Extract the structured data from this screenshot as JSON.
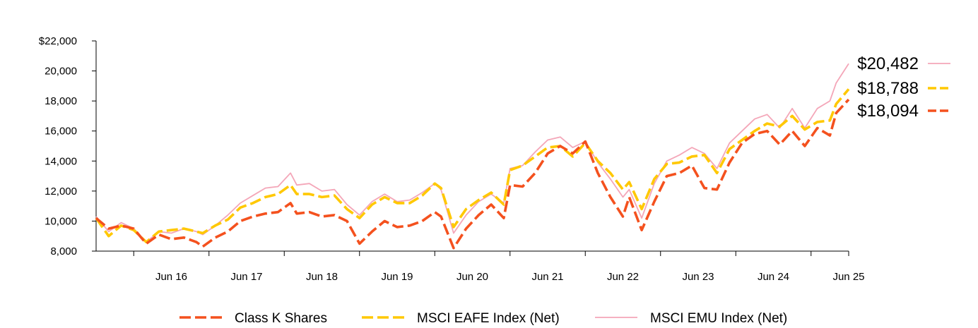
{
  "chart_data": {
    "type": "line",
    "x_start": "2015-06",
    "x_end": "2025-06",
    "ylim": [
      8000,
      22000
    ],
    "y_ticks": [
      {
        "value": 8000,
        "label": "8,000"
      },
      {
        "value": 10000,
        "label": "10,000"
      },
      {
        "value": 12000,
        "label": "12,000"
      },
      {
        "value": 14000,
        "label": "14,000"
      },
      {
        "value": 16000,
        "label": "16,000"
      },
      {
        "value": 18000,
        "label": "18,000"
      },
      {
        "value": 20000,
        "label": "20,000"
      },
      {
        "value": 22000,
        "label": "$22,000"
      }
    ],
    "x_ticks": [
      {
        "date": "2016-06",
        "label": "Jun 16"
      },
      {
        "date": "2017-06",
        "label": "Jun 17"
      },
      {
        "date": "2018-06",
        "label": "Jun 18"
      },
      {
        "date": "2019-06",
        "label": "Jun 19"
      },
      {
        "date": "2020-06",
        "label": "Jun 20"
      },
      {
        "date": "2021-06",
        "label": "Jun 21"
      },
      {
        "date": "2022-06",
        "label": "Jun 22"
      },
      {
        "date": "2023-06",
        "label": "Jun 23"
      },
      {
        "date": "2024-06",
        "label": "Jun 24"
      },
      {
        "date": "2025-06",
        "label": "Jun 25"
      }
    ],
    "legend_position": "bottom",
    "series": [
      {
        "name": "Class K Shares",
        "color": "#f4511e",
        "style": "dashed-thick",
        "end_label": "$18,094",
        "end_value": 18094,
        "points": [
          [
            "2015-06",
            10200
          ],
          [
            "2015-08",
            9500
          ],
          [
            "2015-10",
            9700
          ],
          [
            "2015-12",
            9500
          ],
          [
            "2016-02",
            8500
          ],
          [
            "2016-04",
            9100
          ],
          [
            "2016-06",
            8800
          ],
          [
            "2016-08",
            8900
          ],
          [
            "2016-10",
            8600
          ],
          [
            "2016-11",
            8300
          ],
          [
            "2017-01",
            8900
          ],
          [
            "2017-03",
            9300
          ],
          [
            "2017-05",
            10000
          ],
          [
            "2017-07",
            10300
          ],
          [
            "2017-09",
            10500
          ],
          [
            "2017-11",
            10600
          ],
          [
            "2018-01",
            11200
          ],
          [
            "2018-02",
            10500
          ],
          [
            "2018-04",
            10600
          ],
          [
            "2018-06",
            10300
          ],
          [
            "2018-08",
            10400
          ],
          [
            "2018-10",
            10000
          ],
          [
            "2018-12",
            8500
          ],
          [
            "2019-02",
            9300
          ],
          [
            "2019-04",
            10000
          ],
          [
            "2019-06",
            9600
          ],
          [
            "2019-08",
            9700
          ],
          [
            "2019-10",
            10000
          ],
          [
            "2019-12",
            10600
          ],
          [
            "2020-01",
            10300
          ],
          [
            "2020-03",
            8200
          ],
          [
            "2020-05",
            9500
          ],
          [
            "2020-07",
            10400
          ],
          [
            "2020-09",
            11100
          ],
          [
            "2020-11",
            10200
          ],
          [
            "2020-12",
            12400
          ],
          [
            "2021-02",
            12300
          ],
          [
            "2021-04",
            13200
          ],
          [
            "2021-06",
            14500
          ],
          [
            "2021-08",
            15000
          ],
          [
            "2021-10",
            14500
          ],
          [
            "2021-12",
            15300
          ],
          [
            "2022-02",
            13200
          ],
          [
            "2022-04",
            11600
          ],
          [
            "2022-06",
            10300
          ],
          [
            "2022-07",
            11600
          ],
          [
            "2022-09",
            9400
          ],
          [
            "2022-11",
            11300
          ],
          [
            "2023-01",
            13000
          ],
          [
            "2023-03",
            13200
          ],
          [
            "2023-05",
            13700
          ],
          [
            "2023-07",
            12200
          ],
          [
            "2023-09",
            12100
          ],
          [
            "2023-11",
            13900
          ],
          [
            "2024-01",
            15200
          ],
          [
            "2024-03",
            15800
          ],
          [
            "2024-05",
            16000
          ],
          [
            "2024-07",
            15100
          ],
          [
            "2024-09",
            16000
          ],
          [
            "2024-11",
            15000
          ],
          [
            "2025-01",
            16200
          ],
          [
            "2025-03",
            15700
          ],
          [
            "2025-04",
            17200
          ],
          [
            "2025-06",
            18094
          ]
        ]
      },
      {
        "name": "MSCI EAFE Index (Net)",
        "color": "#ffc800",
        "style": "dashed-thick",
        "end_label": "$18,788",
        "end_value": 18788,
        "points": [
          [
            "2015-06",
            10200
          ],
          [
            "2015-08",
            9000
          ],
          [
            "2015-10",
            9700
          ],
          [
            "2015-12",
            9400
          ],
          [
            "2016-02",
            8600
          ],
          [
            "2016-04",
            9300
          ],
          [
            "2016-06",
            9400
          ],
          [
            "2016-08",
            9500
          ],
          [
            "2016-10",
            9300
          ],
          [
            "2016-11",
            9200
          ],
          [
            "2017-01",
            9700
          ],
          [
            "2017-03",
            10100
          ],
          [
            "2017-05",
            10900
          ],
          [
            "2017-07",
            11200
          ],
          [
            "2017-09",
            11600
          ],
          [
            "2017-11",
            11800
          ],
          [
            "2018-01",
            12400
          ],
          [
            "2018-02",
            11800
          ],
          [
            "2018-04",
            11800
          ],
          [
            "2018-06",
            11600
          ],
          [
            "2018-08",
            11700
          ],
          [
            "2018-10",
            10800
          ],
          [
            "2018-12",
            10200
          ],
          [
            "2019-02",
            11100
          ],
          [
            "2019-04",
            11600
          ],
          [
            "2019-06",
            11200
          ],
          [
            "2019-08",
            11200
          ],
          [
            "2019-10",
            11700
          ],
          [
            "2019-12",
            12500
          ],
          [
            "2020-01",
            12200
          ],
          [
            "2020-03",
            9600
          ],
          [
            "2020-05",
            10800
          ],
          [
            "2020-07",
            11400
          ],
          [
            "2020-09",
            11900
          ],
          [
            "2020-11",
            11100
          ],
          [
            "2020-12",
            13400
          ],
          [
            "2021-02",
            13700
          ],
          [
            "2021-04",
            14300
          ],
          [
            "2021-06",
            14900
          ],
          [
            "2021-08",
            15000
          ],
          [
            "2021-10",
            14300
          ],
          [
            "2021-12",
            15200
          ],
          [
            "2022-02",
            14000
          ],
          [
            "2022-04",
            13200
          ],
          [
            "2022-06",
            12100
          ],
          [
            "2022-07",
            12600
          ],
          [
            "2022-09",
            10800
          ],
          [
            "2022-11",
            12800
          ],
          [
            "2023-01",
            13800
          ],
          [
            "2023-03",
            13900
          ],
          [
            "2023-05",
            14300
          ],
          [
            "2023-07",
            14400
          ],
          [
            "2023-09",
            13200
          ],
          [
            "2023-11",
            14800
          ],
          [
            "2024-01",
            15400
          ],
          [
            "2024-03",
            16000
          ],
          [
            "2024-05",
            16500
          ],
          [
            "2024-07",
            16300
          ],
          [
            "2024-09",
            17000
          ],
          [
            "2024-11",
            16100
          ],
          [
            "2025-01",
            16600
          ],
          [
            "2025-03",
            16700
          ],
          [
            "2025-04",
            17800
          ],
          [
            "2025-06",
            18788
          ]
        ]
      },
      {
        "name": "MSCI EMU Index (Net)",
        "color": "#f4a6b8",
        "style": "solid-thin",
        "end_label": "$20,482",
        "end_value": 20482,
        "points": [
          [
            "2015-06",
            10300
          ],
          [
            "2015-08",
            9300
          ],
          [
            "2015-10",
            9900
          ],
          [
            "2015-12",
            9500
          ],
          [
            "2016-02",
            8600
          ],
          [
            "2016-04",
            9300
          ],
          [
            "2016-06",
            9200
          ],
          [
            "2016-08",
            9500
          ],
          [
            "2016-10",
            9300
          ],
          [
            "2016-11",
            9100
          ],
          [
            "2017-01",
            9700
          ],
          [
            "2017-03",
            10400
          ],
          [
            "2017-05",
            11200
          ],
          [
            "2017-07",
            11700
          ],
          [
            "2017-09",
            12200
          ],
          [
            "2017-11",
            12300
          ],
          [
            "2018-01",
            13200
          ],
          [
            "2018-02",
            12400
          ],
          [
            "2018-04",
            12500
          ],
          [
            "2018-06",
            12000
          ],
          [
            "2018-08",
            12100
          ],
          [
            "2018-10",
            11100
          ],
          [
            "2018-12",
            10400
          ],
          [
            "2019-02",
            11300
          ],
          [
            "2019-04",
            11800
          ],
          [
            "2019-06",
            11300
          ],
          [
            "2019-08",
            11400
          ],
          [
            "2019-10",
            11900
          ],
          [
            "2019-12",
            12500
          ],
          [
            "2020-01",
            12100
          ],
          [
            "2020-03",
            9200
          ],
          [
            "2020-05",
            10400
          ],
          [
            "2020-07",
            11300
          ],
          [
            "2020-09",
            11800
          ],
          [
            "2020-11",
            11200
          ],
          [
            "2020-12",
            13500
          ],
          [
            "2021-02",
            13700
          ],
          [
            "2021-04",
            14600
          ],
          [
            "2021-06",
            15400
          ],
          [
            "2021-08",
            15600
          ],
          [
            "2021-10",
            14900
          ],
          [
            "2021-12",
            15300
          ],
          [
            "2022-02",
            13900
          ],
          [
            "2022-04",
            12800
          ],
          [
            "2022-06",
            11600
          ],
          [
            "2022-07",
            12100
          ],
          [
            "2022-09",
            10200
          ],
          [
            "2022-11",
            12500
          ],
          [
            "2023-01",
            14000
          ],
          [
            "2023-03",
            14400
          ],
          [
            "2023-05",
            14900
          ],
          [
            "2023-07",
            14500
          ],
          [
            "2023-09",
            13500
          ],
          [
            "2023-11",
            15200
          ],
          [
            "2024-01",
            16000
          ],
          [
            "2024-03",
            16800
          ],
          [
            "2024-05",
            17100
          ],
          [
            "2024-07",
            16200
          ],
          [
            "2024-09",
            17500
          ],
          [
            "2024-11",
            16200
          ],
          [
            "2025-01",
            17500
          ],
          [
            "2025-03",
            18000
          ],
          [
            "2025-04",
            19200
          ],
          [
            "2025-06",
            20482
          ]
        ]
      }
    ]
  }
}
